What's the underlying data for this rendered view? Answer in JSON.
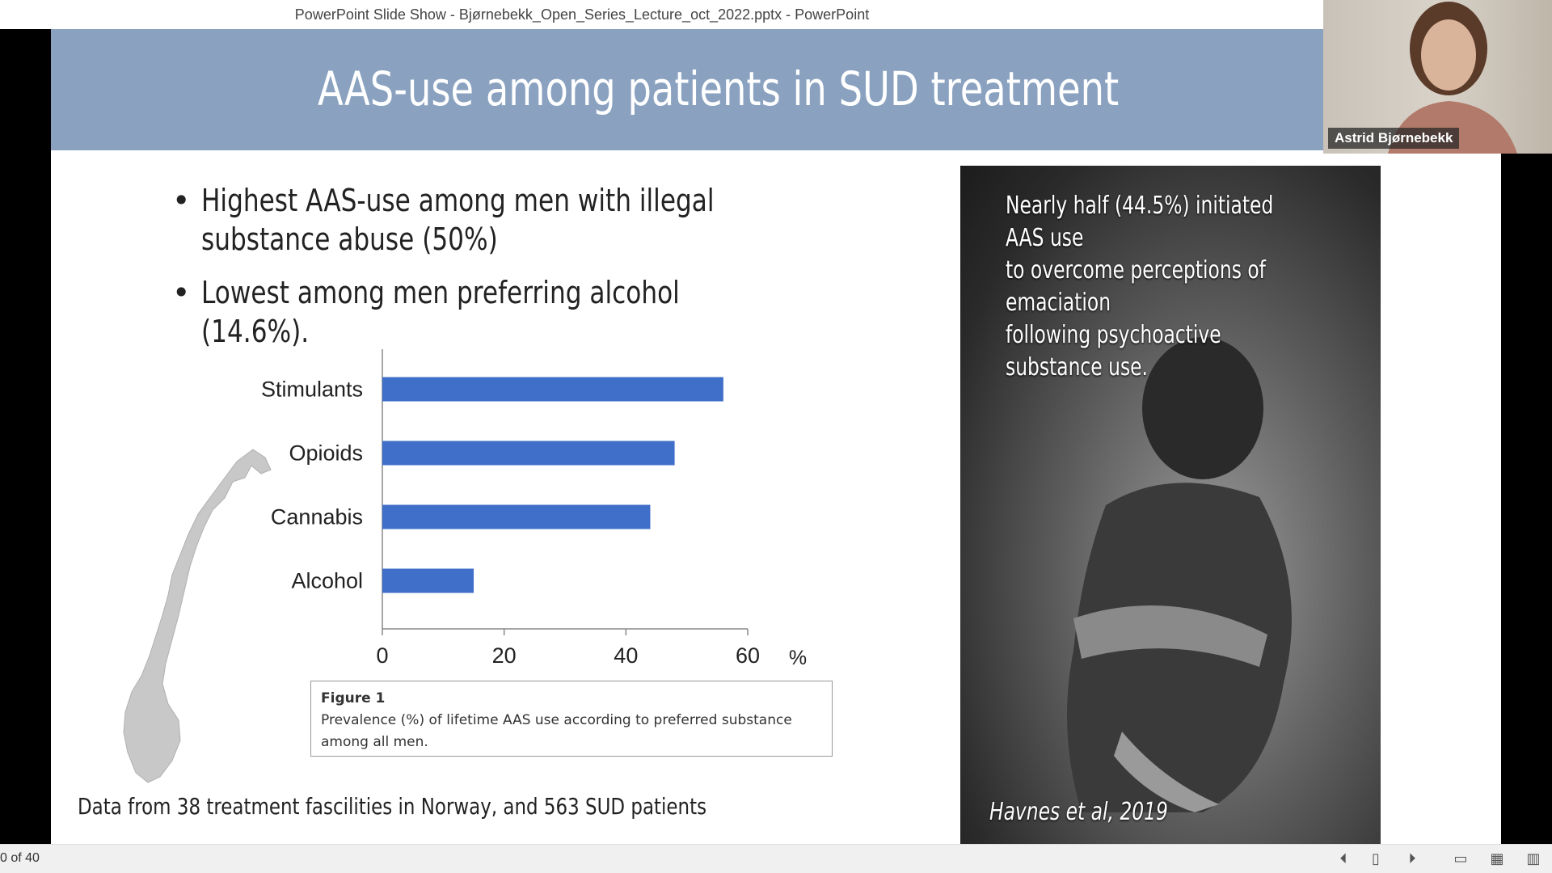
{
  "window": {
    "title": "PowerPoint Slide Show  -  Bjørnebekk_Open_Series_Lecture_oct_2022.pptx - PowerPoint"
  },
  "slide": {
    "title": "AAS-use among patients in SUD treatment",
    "bullets": [
      "Highest AAS-use among men with illegal substance abuse (50%)",
      "Lowest among men preferring alcohol (14.6%)."
    ],
    "figure_title": "Figure 1",
    "figure_caption": "Prevalence (%) of lifetime AAS use according to preferred substance among all men.",
    "footnote": "Data from 38 treatment fascilities in Norway, and 563 SUD patients",
    "photo_text_lines": [
      "Nearly half (44.5%) initiated",
      "AAS use",
      "to overcome perceptions of",
      "emaciation",
      "following psychoactive",
      "substance use."
    ],
    "photo_citation": "Havnes et al, 2019"
  },
  "webcam": {
    "participant_name": "Astrid Bjørnebekk"
  },
  "statusbar": {
    "slide_counter": "0 of 40",
    "icons": [
      "previous-icon",
      "slide-sorter-icon",
      "next-icon",
      "normal-view-icon",
      "grid-view-icon",
      "reading-view-icon"
    ]
  },
  "chart_data": {
    "type": "bar",
    "orientation": "horizontal",
    "categories": [
      "Stimulants",
      "Opioids",
      "Cannabis",
      "Alcohol"
    ],
    "values": [
      56,
      48,
      44,
      15
    ],
    "xlim": [
      0,
      60
    ],
    "xticks": [
      "0",
      "20",
      "40",
      "60"
    ],
    "xunit": "%",
    "color": "#3f6fc9"
  }
}
